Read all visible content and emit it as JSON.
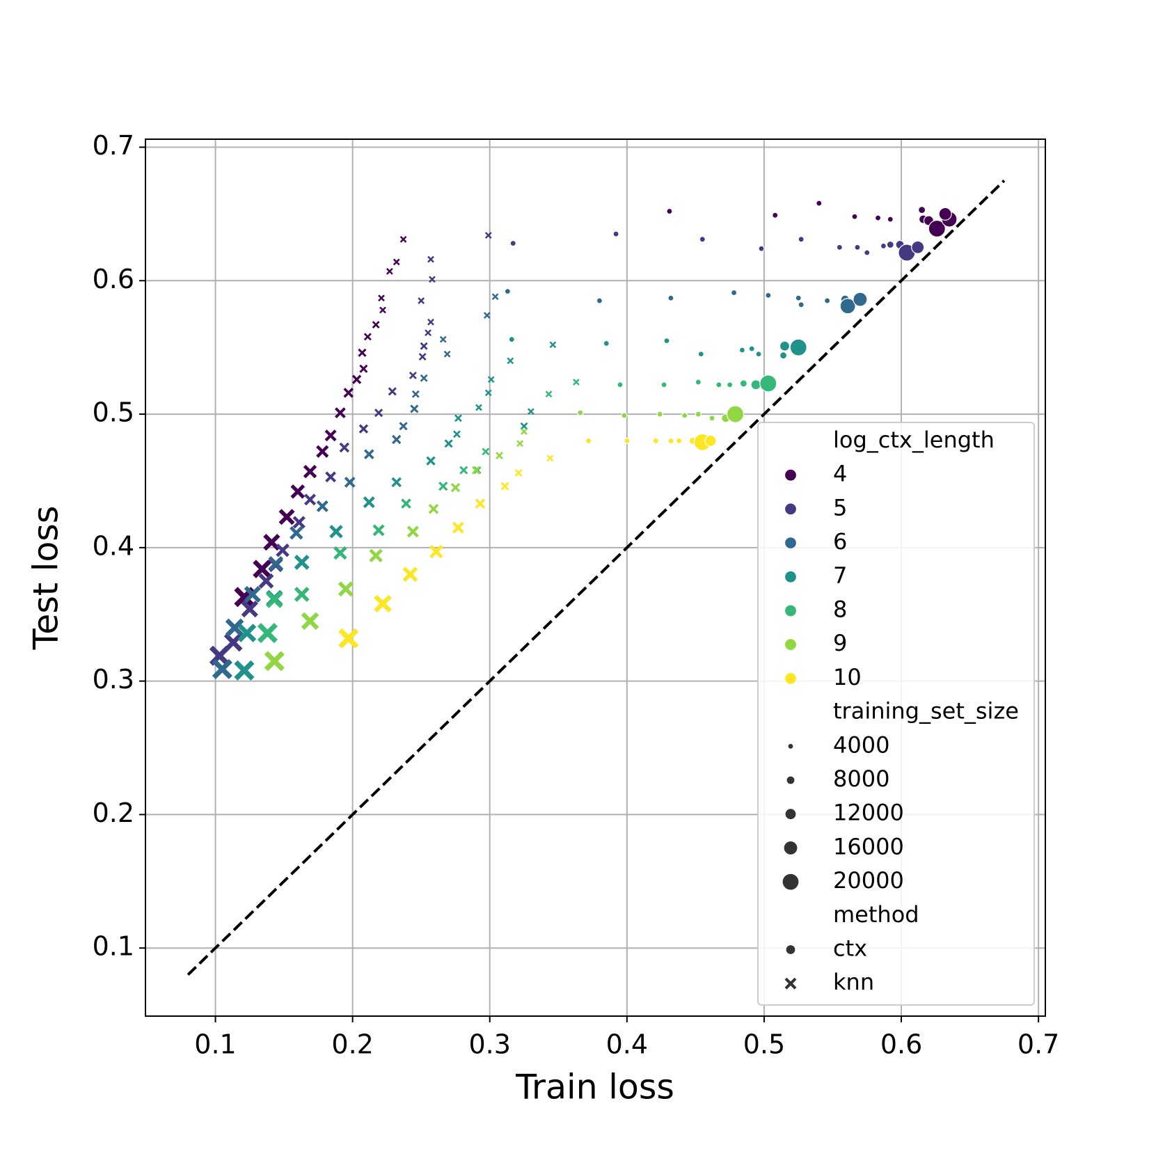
{
  "chart_data": {
    "type": "scatter",
    "xlabel": "Train loss",
    "ylabel": "Test loss",
    "xlim": [
      0.049,
      0.705
    ],
    "ylim": [
      0.049,
      0.706
    ],
    "xticks": [
      0.1,
      0.2,
      0.3,
      0.4,
      0.5,
      0.6,
      0.7
    ],
    "yticks": [
      0.1,
      0.2,
      0.3,
      0.4,
      0.5,
      0.6,
      0.7
    ],
    "grid": true,
    "reference_line": {
      "x": [
        0.08,
        0.675
      ],
      "y": [
        0.08,
        0.675
      ]
    },
    "legend": {
      "position": "lower right",
      "hue_title": "log_ctx_length",
      "size_title": "training_set_size",
      "sizes": [
        4000,
        8000,
        12000,
        16000,
        20000
      ],
      "style_title": "method",
      "styles": [
        "ctx",
        "knn"
      ]
    },
    "series": [
      {
        "name": "4",
        "color": "#440154",
        "ctx": {
          "x": [
            0.431,
            0.508,
            0.54,
            0.566,
            0.583,
            0.592,
            0.615,
            0.616,
            0.62,
            0.626,
            0.635,
            0.632
          ],
          "y": [
            0.652,
            0.649,
            0.658,
            0.648,
            0.647,
            0.646,
            0.653,
            0.646,
            0.645,
            0.639,
            0.646,
            0.65
          ],
          "size": [
            4000,
            4000,
            4000,
            4000,
            4000,
            4000,
            6000,
            8000,
            10000,
            20000,
            18000,
            14000
          ]
        },
        "knn": {
          "x": [
            0.237,
            0.232,
            0.227,
            0.221,
            0.222,
            0.217,
            0.211,
            0.207,
            0.208,
            0.203,
            0.197,
            0.191,
            0.184,
            0.178,
            0.169,
            0.16,
            0.152,
            0.141,
            0.134,
            0.121
          ],
          "y": [
            0.631,
            0.614,
            0.607,
            0.587,
            0.578,
            0.567,
            0.558,
            0.546,
            0.534,
            0.526,
            0.516,
            0.501,
            0.484,
            0.472,
            0.457,
            0.442,
            0.423,
            0.404,
            0.384,
            0.363
          ],
          "size": [
            4000,
            4000,
            4000,
            4000,
            4000,
            5000,
            5000,
            6000,
            6000,
            7000,
            8000,
            9000,
            10000,
            11000,
            12000,
            13000,
            15000,
            16000,
            18000,
            20000
          ]
        }
      },
      {
        "name": "5",
        "color": "#443983",
        "ctx": {
          "x": [
            0.317,
            0.392,
            0.455,
            0.498,
            0.527,
            0.555,
            0.568,
            0.575,
            0.587,
            0.592,
            0.599,
            0.604,
            0.612
          ],
          "y": [
            0.628,
            0.635,
            0.631,
            0.624,
            0.631,
            0.625,
            0.625,
            0.621,
            0.626,
            0.627,
            0.627,
            0.621,
            0.625
          ],
          "size": [
            4000,
            4000,
            4000,
            4000,
            4000,
            4000,
            4000,
            4000,
            4000,
            6000,
            8000,
            20000,
            14000
          ]
        },
        "knn": {
          "x": [
            0.299,
            0.257,
            0.258,
            0.25,
            0.257,
            0.255,
            0.252,
            0.251,
            0.244,
            0.229,
            0.219,
            0.208,
            0.194,
            0.184,
            0.169,
            0.161,
            0.149,
            0.144,
            0.137,
            0.125,
            0.113,
            0.103
          ],
          "y": [
            0.634,
            0.616,
            0.601,
            0.585,
            0.569,
            0.561,
            0.551,
            0.543,
            0.529,
            0.517,
            0.501,
            0.489,
            0.475,
            0.453,
            0.436,
            0.419,
            0.398,
            0.387,
            0.375,
            0.354,
            0.329,
            0.319
          ],
          "size": [
            4000,
            4000,
            4000,
            4000,
            4000,
            4000,
            5000,
            5000,
            5000,
            6000,
            6000,
            7000,
            8000,
            9000,
            10000,
            11000,
            12000,
            13000,
            14000,
            16000,
            18000,
            20000
          ]
        }
      },
      {
        "name": "6",
        "color": "#31688e",
        "ctx": {
          "x": [
            0.313,
            0.38,
            0.432,
            0.478,
            0.503,
            0.525,
            0.527,
            0.546,
            0.559,
            0.561,
            0.57
          ],
          "y": [
            0.592,
            0.585,
            0.587,
            0.591,
            0.589,
            0.587,
            0.582,
            0.585,
            0.586,
            0.581,
            0.586
          ],
          "size": [
            4000,
            4000,
            4000,
            4000,
            4000,
            4000,
            4000,
            4000,
            8000,
            18000,
            16000
          ]
        },
        "knn": {
          "x": [
            0.304,
            0.298,
            0.266,
            0.269,
            0.252,
            0.246,
            0.245,
            0.237,
            0.232,
            0.212,
            0.198,
            0.178,
            0.159,
            0.144,
            0.127,
            0.114,
            0.105
          ],
          "y": [
            0.588,
            0.574,
            0.556,
            0.545,
            0.527,
            0.515,
            0.504,
            0.491,
            0.481,
            0.47,
            0.449,
            0.431,
            0.411,
            0.388,
            0.365,
            0.34,
            0.309
          ],
          "size": [
            4000,
            4000,
            4000,
            4000,
            5000,
            5000,
            6000,
            6000,
            7000,
            8000,
            9000,
            10000,
            12000,
            14000,
            16000,
            18000,
            20000
          ]
        }
      },
      {
        "name": "7",
        "color": "#21918c",
        "ctx": {
          "x": [
            0.316,
            0.385,
            0.429,
            0.454,
            0.484,
            0.491,
            0.496,
            0.514,
            0.515,
            0.525
          ],
          "y": [
            0.556,
            0.553,
            0.555,
            0.545,
            0.548,
            0.549,
            0.545,
            0.544,
            0.551,
            0.55
          ],
          "size": [
            4000,
            4000,
            4000,
            4000,
            4000,
            4000,
            4000,
            6000,
            10000,
            20000
          ]
        },
        "knn": {
          "x": [
            0.346,
            0.315,
            0.301,
            0.299,
            0.292,
            0.33,
            0.325,
            0.276,
            0.277,
            0.27,
            0.257,
            0.232,
            0.212,
            0.188,
            0.163,
            0.143,
            0.123,
            0.121
          ],
          "y": [
            0.552,
            0.54,
            0.526,
            0.516,
            0.505,
            0.502,
            0.491,
            0.485,
            0.497,
            0.478,
            0.465,
            0.449,
            0.434,
            0.412,
            0.389,
            0.362,
            0.336,
            0.308
          ],
          "size": [
            4000,
            4000,
            4000,
            4000,
            4000,
            4000,
            5000,
            5000,
            5000,
            6000,
            7000,
            8000,
            10000,
            12000,
            14000,
            16000,
            18000,
            20000
          ]
        }
      },
      {
        "name": "8",
        "color": "#35b779",
        "ctx": {
          "x": [
            0.395,
            0.427,
            0.452,
            0.467,
            0.475,
            0.485,
            0.494,
            0.503
          ],
          "y": [
            0.522,
            0.522,
            0.524,
            0.522,
            0.522,
            0.523,
            0.522,
            0.523
          ],
          "size": [
            4000,
            4000,
            4000,
            4000,
            4000,
            6000,
            10000,
            20000
          ]
        },
        "knn": {
          "x": [
            0.363,
            0.343,
            0.297,
            0.291,
            0.281,
            0.266,
            0.239,
            0.219,
            0.191,
            0.163,
            0.143,
            0.138
          ],
          "y": [
            0.524,
            0.515,
            0.472,
            0.458,
            0.458,
            0.446,
            0.433,
            0.413,
            0.396,
            0.365,
            0.361,
            0.336
          ],
          "size": [
            4000,
            4000,
            5000,
            5000,
            6000,
            7000,
            8000,
            10000,
            12000,
            14000,
            16000,
            20000
          ]
        }
      },
      {
        "name": "9",
        "color": "#90d743",
        "ctx": {
          "x": [
            0.366,
            0.398,
            0.424,
            0.442,
            0.452,
            0.462,
            0.472,
            0.479
          ],
          "y": [
            0.501,
            0.499,
            0.5,
            0.499,
            0.5,
            0.497,
            0.497,
            0.5
          ],
          "size": [
            4000,
            4000,
            4000,
            4000,
            4000,
            4000,
            8000,
            20000
          ]
        },
        "knn": {
          "x": [
            0.325,
            0.322,
            0.307,
            0.29,
            0.275,
            0.259,
            0.244,
            0.217,
            0.195,
            0.169,
            0.143
          ],
          "y": [
            0.487,
            0.478,
            0.469,
            0.458,
            0.445,
            0.429,
            0.412,
            0.394,
            0.369,
            0.345,
            0.315
          ],
          "size": [
            4000,
            4000,
            5000,
            6000,
            7000,
            8000,
            10000,
            12000,
            14000,
            17000,
            20000
          ]
        }
      },
      {
        "name": "10",
        "color": "#fde725",
        "ctx": {
          "x": [
            0.372,
            0.4,
            0.421,
            0.432,
            0.438,
            0.448,
            0.455,
            0.461
          ],
          "y": [
            0.48,
            0.48,
            0.48,
            0.48,
            0.48,
            0.48,
            0.479,
            0.48
          ],
          "size": [
            4000,
            4000,
            4000,
            4000,
            4000,
            6000,
            20000,
            12000
          ]
        },
        "knn": {
          "x": [
            0.344,
            0.321,
            0.311,
            0.293,
            0.277,
            0.261,
            0.242,
            0.222,
            0.197
          ],
          "y": [
            0.467,
            0.456,
            0.446,
            0.433,
            0.415,
            0.397,
            0.38,
            0.358,
            0.332
          ],
          "size": [
            4000,
            5000,
            6000,
            8000,
            10000,
            12000,
            14000,
            17000,
            20000
          ]
        }
      }
    ]
  }
}
